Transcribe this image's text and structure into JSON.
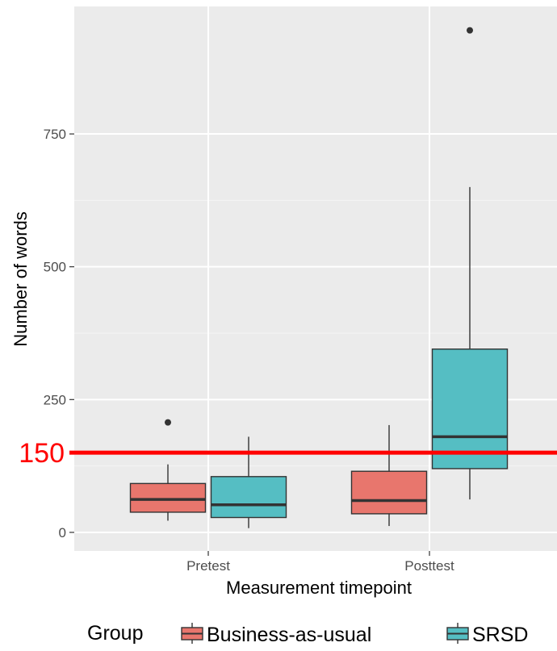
{
  "chart_data": {
    "type": "boxplot",
    "xlabel": "Measurement timepoint",
    "ylabel": "Number of words",
    "categories": [
      "Pretest",
      "Posttest"
    ],
    "ylim": [
      -35,
      990
    ],
    "yticks": [
      0,
      250,
      500,
      750
    ],
    "grid": true,
    "legend": {
      "title": "Group",
      "position": "bottom",
      "entries": [
        "Business-as-usual",
        "SRSD"
      ]
    },
    "series": [
      {
        "name": "Business-as-usual",
        "color": "#e8766d",
        "boxes": [
          {
            "category": "Pretest",
            "whisker_low": 22,
            "q1": 38,
            "median": 62,
            "q3": 92,
            "whisker_high": 128,
            "outliers": [
              207
            ]
          },
          {
            "category": "Posttest",
            "whisker_low": 12,
            "q1": 35,
            "median": 60,
            "q3": 115,
            "whisker_high": 202,
            "outliers": []
          }
        ]
      },
      {
        "name": "SRSD",
        "color": "#55bec3",
        "boxes": [
          {
            "category": "Pretest",
            "whisker_low": 8,
            "q1": 28,
            "median": 52,
            "q3": 105,
            "whisker_high": 180,
            "outliers": []
          },
          {
            "category": "Posttest",
            "whisker_low": 62,
            "q1": 120,
            "median": 180,
            "q3": 345,
            "whisker_high": 650,
            "outliers": [
              945
            ]
          }
        ]
      }
    ],
    "reference_line": {
      "value": 150,
      "label": "150",
      "color": "#ff0000"
    }
  }
}
